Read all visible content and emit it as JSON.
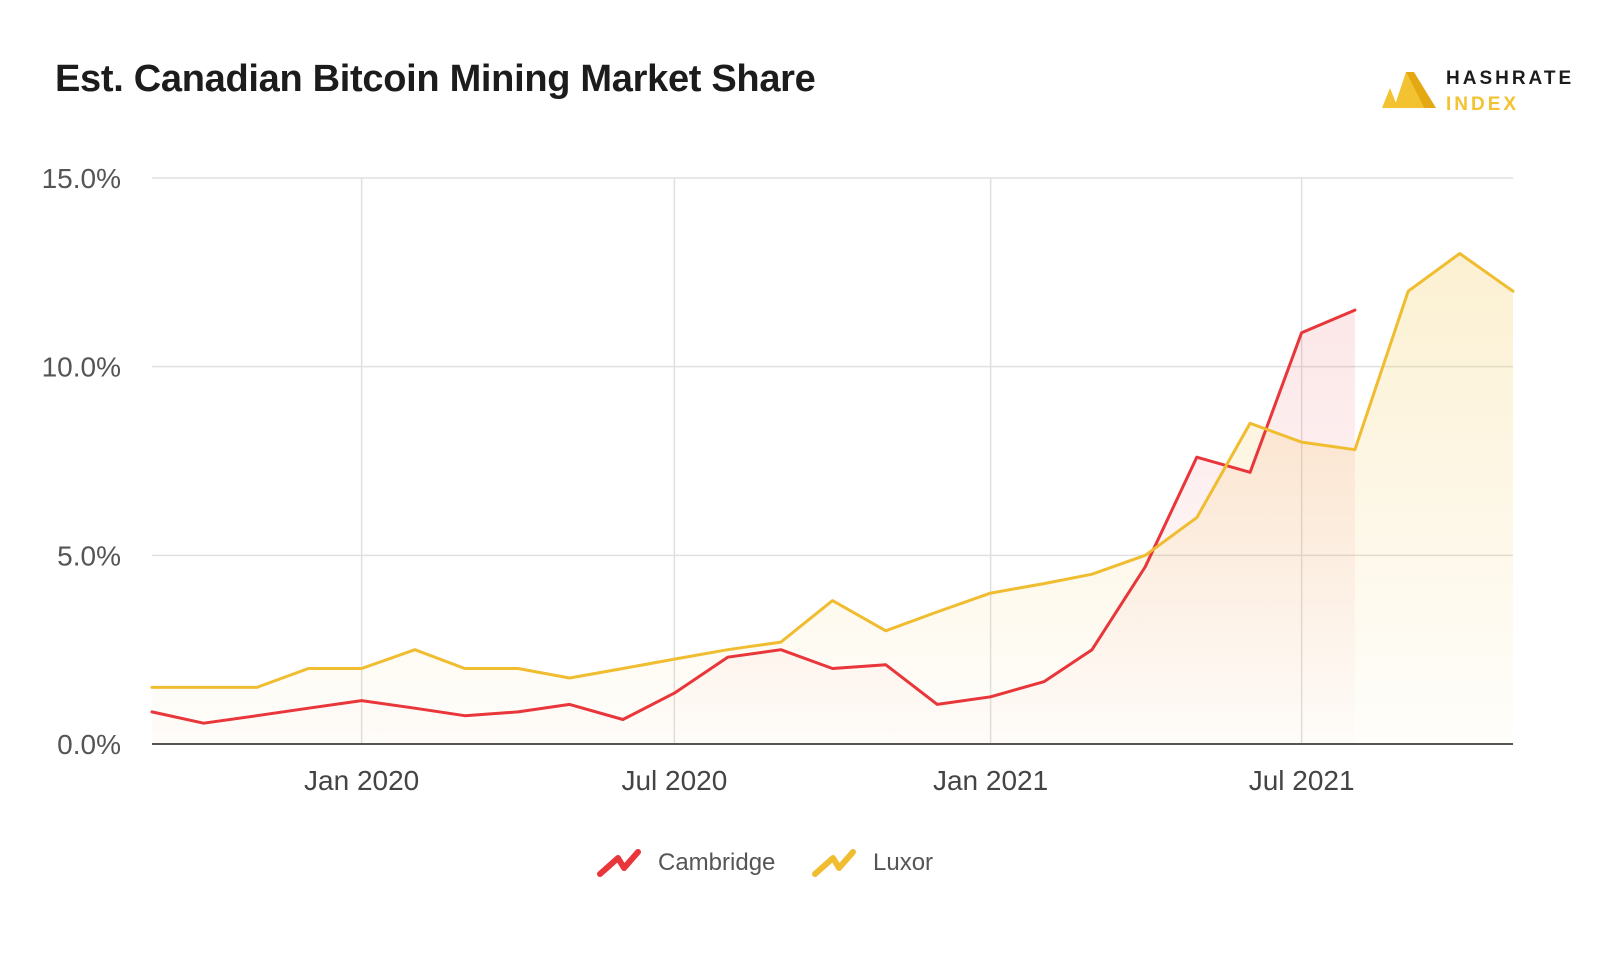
{
  "header": {
    "title": "Est. Canadian Bitcoin Mining Market Share",
    "brand_line1": "HASHRATE",
    "brand_line2": "INDEX"
  },
  "colors": {
    "cambridge": "#e8363a",
    "luxor": "#f0bc30",
    "grid": "#e0e0e0",
    "axis": "#555555"
  },
  "chart_data": {
    "type": "line",
    "title": "Est. Canadian Bitcoin Mining Market Share",
    "xlabel": "",
    "ylabel": "",
    "y_unit": "%",
    "ylim": [
      0,
      15
    ],
    "y_ticks": [
      "0.0%",
      "5.0%",
      "10.0%",
      "15.0%"
    ],
    "x_ticks": [
      "Jan 2020",
      "Jul 2020",
      "Jan 2021",
      "Jul 2021"
    ],
    "x_tick_dates": [
      "2020-01-01",
      "2020-07-01",
      "2021-01-01",
      "2021-07-01"
    ],
    "xlim": [
      "2019-09-01",
      "2021-11-01"
    ],
    "grid": true,
    "legend_position": "bottom-center",
    "series": [
      {
        "name": "Cambridge",
        "color": "#e8363a",
        "x": [
          "2019-09-01",
          "2019-10-01",
          "2019-11-01",
          "2019-12-01",
          "2020-01-01",
          "2020-02-01",
          "2020-03-01",
          "2020-04-01",
          "2020-05-01",
          "2020-06-01",
          "2020-07-01",
          "2020-08-01",
          "2020-09-01",
          "2020-10-01",
          "2020-11-01",
          "2020-12-01",
          "2021-01-01",
          "2021-02-01",
          "2021-03-01",
          "2021-04-01",
          "2021-05-01",
          "2021-06-01",
          "2021-07-01",
          "2021-08-01"
        ],
        "values": [
          0.85,
          0.55,
          0.75,
          0.95,
          1.15,
          0.95,
          0.75,
          0.85,
          1.05,
          0.65,
          1.35,
          2.3,
          2.5,
          2.0,
          2.1,
          1.05,
          1.25,
          1.65,
          2.5,
          4.7,
          7.6,
          7.2,
          10.9,
          11.5
        ]
      },
      {
        "name": "Luxor",
        "color": "#f0bc30",
        "x": [
          "2019-09-01",
          "2019-10-01",
          "2019-11-01",
          "2019-12-01",
          "2020-01-01",
          "2020-02-01",
          "2020-03-01",
          "2020-04-01",
          "2020-05-01",
          "2020-06-01",
          "2020-07-01",
          "2020-08-01",
          "2020-09-01",
          "2020-10-01",
          "2020-11-01",
          "2020-12-01",
          "2021-01-01",
          "2021-02-01",
          "2021-03-01",
          "2021-04-01",
          "2021-05-01",
          "2021-06-01",
          "2021-07-01",
          "2021-08-01",
          "2021-09-01",
          "2021-10-01",
          "2021-11-01"
        ],
        "values": [
          1.5,
          1.5,
          1.5,
          2.0,
          2.0,
          2.5,
          2.0,
          2.0,
          1.75,
          2.0,
          2.25,
          2.5,
          2.7,
          3.8,
          3.0,
          3.5,
          4.0,
          4.25,
          4.5,
          5.0,
          6.0,
          8.5,
          8.0,
          7.8,
          12.0,
          13.0,
          12.0
        ]
      }
    ]
  }
}
